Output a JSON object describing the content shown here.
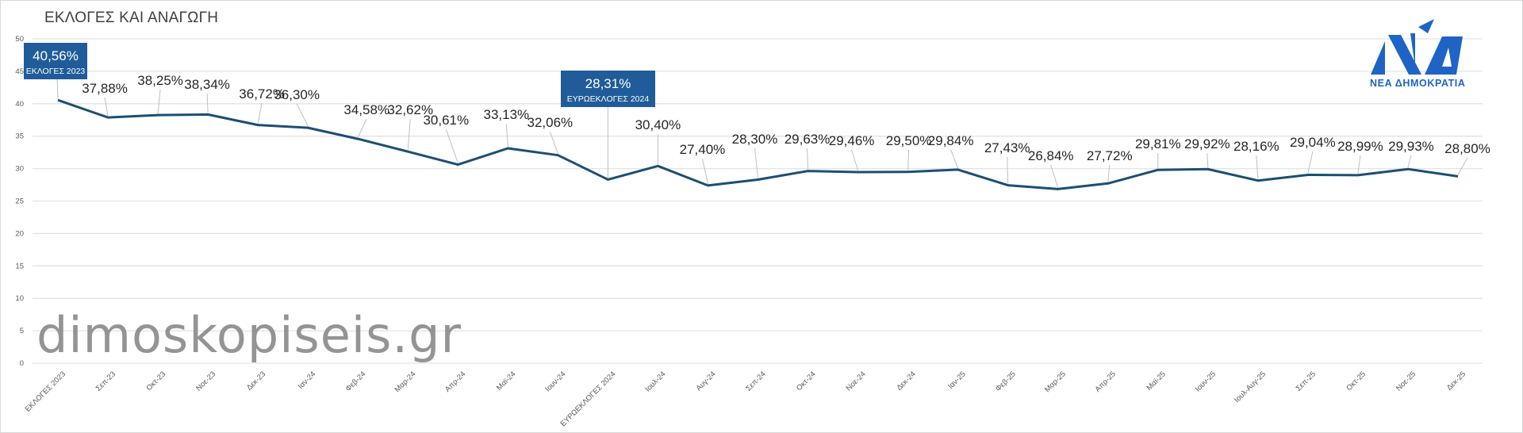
{
  "header": {
    "title": "ΕΚΛΟΓΕΣ ΚΑΙ ΑΝΑΓΩΓΗ"
  },
  "watermark": "dimoskopiseis.gr",
  "logo": {
    "name": "nd-logo-icon",
    "text": "ΝΕΑ ΔΗΜΟΚΡΑΤΙΑ",
    "color": "#1f63c6"
  },
  "colors": {
    "line": "#1b4f72",
    "callout_bg": "#1f5c99",
    "grid": "#e3e3e3",
    "label": "#262626",
    "axis_text": "#595959"
  },
  "chart_data": {
    "type": "line",
    "title": "ΕΚΛΟΓΕΣ ΚΑΙ ΑΝΑΓΩΓΗ",
    "xlabel": "",
    "ylabel": "",
    "ylim": [
      0,
      50
    ],
    "yticks": [
      0,
      5,
      10,
      15,
      20,
      25,
      30,
      35,
      40,
      45,
      50
    ],
    "grid": true,
    "legend": "none",
    "categories": [
      "ΕΚΛΟΓΕΣ 2023",
      "Σεπ-23",
      "Οκτ-23",
      "Νοε-23",
      "Δεκ-23",
      "Ιαν-24",
      "Φεβ-24",
      "Μαρ-24",
      "Απρ-24",
      "Μαϊ-24",
      "Ιουν-24",
      "ΕΥΡΩΕΚΛΟΓΕΣ 2024",
      "Ιουλ-24",
      "Αυγ-24",
      "Σεπ-24",
      "Οκτ-24",
      "Νοε-24",
      "Δεκ-24",
      "Ιαν-25",
      "Φεβ-25",
      "Μαρ-25",
      "Απρ-25",
      "Μαϊ-25",
      "Ιουν-25",
      "Ιουλ-Αυγ-25",
      "Σεπ-25",
      "Οκτ-25",
      "Νοε-25",
      "Δεκ-25"
    ],
    "series": [
      {
        "name": "ΝΕΑ ΔΗΜΟΚΡΑΤΙΑ",
        "values": [
          40.56,
          37.88,
          38.25,
          38.34,
          36.72,
          36.3,
          34.58,
          32.62,
          30.61,
          33.13,
          32.06,
          28.31,
          30.4,
          27.4,
          28.3,
          29.63,
          29.46,
          29.5,
          29.84,
          27.43,
          26.84,
          27.72,
          29.81,
          29.92,
          28.16,
          29.04,
          28.99,
          29.93,
          28.8
        ],
        "labels": [
          "40,56%",
          "37,88%",
          "38,25%",
          "38,34%",
          "36,72%",
          "36,30%",
          "34,58%",
          "32,62%",
          "30,61%",
          "33,13%",
          "32,06%",
          "28,31%",
          "30,40%",
          "27,40%",
          "28,30%",
          "29,63%",
          "29,46%",
          "29,50%",
          "29,84%",
          "27,43%",
          "26,84%",
          "27,72%",
          "29,81%",
          "29,92%",
          "28,16%",
          "29,04%",
          "28,99%",
          "29,93%",
          "28,80%"
        ]
      }
    ],
    "annotations": [
      {
        "index": 0,
        "value_label": "40,56%",
        "caption": "ΕΚΛΟΓΕΣ 2023"
      },
      {
        "index": 11,
        "value_label": "28,31%",
        "caption": "ΕΥΡΩΕΚΛΟΓΕΣ 2024"
      }
    ]
  }
}
